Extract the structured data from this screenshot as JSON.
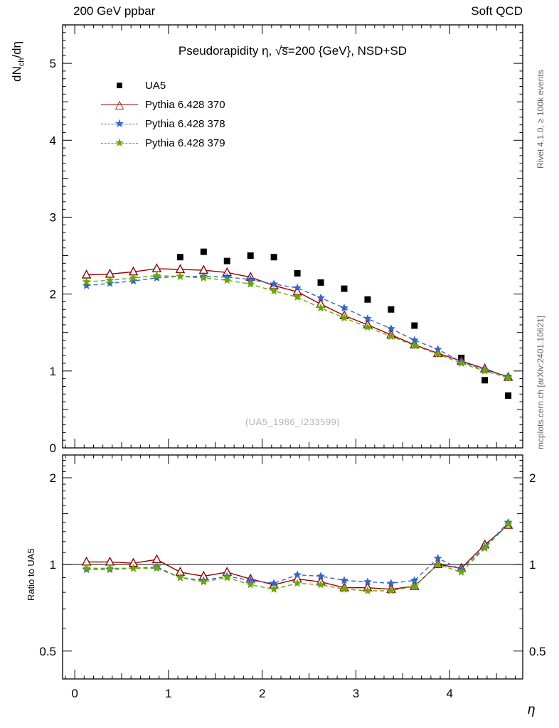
{
  "header": {
    "left": "200 GeV ppbar",
    "right": "Soft QCD"
  },
  "title": "Pseudorapidity η, √s̅=200 {GeV}, NSD+SD",
  "watermark": "(UA5_1986_I233599)",
  "side_notes": {
    "rivet": "Rivet 4.1.0, ≥ 100k events",
    "mcplots": "mcplots.cern.ch [arXiv:2401.10621]"
  },
  "axes": {
    "x_label": "η",
    "y_label_prefix": "dN",
    "y_label_sub": "ch",
    "y_label_suffix": "/dη",
    "ratio_label": "Ratio to UA5",
    "x_ticks": [
      0,
      1,
      2,
      3,
      4
    ],
    "y_ticks": [
      0,
      1,
      2,
      3,
      4,
      5
    ],
    "ratio_ticks": [
      "0.5",
      "1",
      "2"
    ]
  },
  "legend": {
    "items": [
      {
        "label": "UA5",
        "marker": "square",
        "color": "#000000",
        "line": "none"
      },
      {
        "label": "Pythia 6.428 370",
        "marker": "triangle-open",
        "color": "#990000",
        "line": "solid"
      },
      {
        "label": "Pythia 6.428 378",
        "marker": "star",
        "color": "#3366cc",
        "line": "dashed"
      },
      {
        "label": "Pythia 6.428 379",
        "marker": "star",
        "color": "#66aa00",
        "line": "dashed"
      }
    ]
  },
  "chart_data": [
    {
      "id": "main",
      "type": "line",
      "title": "Pseudorapidity η, √s=200 GeV, NSD+SD",
      "xlabel": "η",
      "ylabel": "dN_ch/dη",
      "xlim": [
        -0.13,
        4.78
      ],
      "ylim": [
        0,
        5.5
      ],
      "grid": false,
      "legend_position": "upper-left",
      "x": [
        0.125,
        0.375,
        0.625,
        0.875,
        1.125,
        1.375,
        1.625,
        1.875,
        2.125,
        2.375,
        2.625,
        2.875,
        3.125,
        3.375,
        3.625,
        3.875,
        4.125,
        4.375,
        4.625
      ],
      "series": [
        {
          "name": "UA5",
          "marker": "square",
          "color": "#000000",
          "line": "none",
          "x": [
            1.125,
            1.375,
            1.625,
            1.875,
            2.125,
            2.375,
            2.625,
            2.875,
            3.125,
            3.375,
            3.625,
            4.125,
            4.375,
            4.625
          ],
          "y": [
            2.48,
            2.55,
            2.43,
            2.5,
            2.48,
            2.27,
            2.15,
            2.07,
            1.93,
            1.8,
            1.59,
            1.17,
            0.88,
            0.68
          ]
        },
        {
          "name": "Pythia 6.428 370",
          "marker": "triangle-open",
          "color": "#990000",
          "line": "solid",
          "y": [
            2.25,
            2.26,
            2.29,
            2.33,
            2.32,
            2.31,
            2.28,
            2.22,
            2.11,
            2.03,
            1.87,
            1.72,
            1.6,
            1.47,
            1.34,
            1.23,
            1.13,
            1.03,
            0.92
          ]
        },
        {
          "name": "Pythia 6.428 378",
          "marker": "star",
          "color": "#3366cc",
          "line": "dashed",
          "y": [
            2.11,
            2.14,
            2.17,
            2.21,
            2.23,
            2.23,
            2.22,
            2.19,
            2.13,
            2.08,
            1.95,
            1.82,
            1.68,
            1.55,
            1.4,
            1.28,
            1.12,
            1.01,
            0.93
          ]
        },
        {
          "name": "Pythia 6.428 379",
          "marker": "star",
          "color": "#66aa00",
          "line": "dashed",
          "y": [
            2.16,
            2.18,
            2.21,
            2.24,
            2.23,
            2.21,
            2.18,
            2.13,
            2.04,
            1.96,
            1.82,
            1.69,
            1.57,
            1.45,
            1.33,
            1.22,
            1.1,
            1.0,
            0.91
          ]
        }
      ]
    },
    {
      "id": "ratio",
      "type": "line",
      "ylabel": "Ratio to UA5",
      "yscale": "log",
      "xlim": [
        -0.13,
        4.78
      ],
      "ylim": [
        0.4,
        2.4
      ],
      "reference_line": 1.0,
      "x": [
        0.125,
        0.375,
        0.625,
        0.875,
        1.125,
        1.375,
        1.625,
        1.875,
        2.125,
        2.375,
        2.625,
        2.875,
        3.125,
        3.375,
        3.625,
        3.875,
        4.125,
        4.375,
        4.625
      ],
      "series": [
        {
          "name": "Pythia 6.428 370",
          "marker": "triangle-open",
          "color": "#990000",
          "line": "solid",
          "y": [
            1.02,
            1.02,
            1.01,
            1.04,
            0.94,
            0.91,
            0.94,
            0.89,
            0.85,
            0.89,
            0.87,
            0.83,
            0.83,
            0.82,
            0.84,
            1.0,
            0.97,
            1.17,
            1.37
          ]
        },
        {
          "name": "Pythia 6.428 378",
          "marker": "star",
          "color": "#3366cc",
          "line": "dashed",
          "y": [
            0.96,
            0.96,
            0.97,
            0.98,
            0.9,
            0.88,
            0.91,
            0.88,
            0.86,
            0.92,
            0.91,
            0.88,
            0.87,
            0.86,
            0.88,
            1.05,
            0.96,
            1.15,
            1.4
          ]
        },
        {
          "name": "Pythia 6.428 379",
          "marker": "star",
          "color": "#66aa00",
          "line": "dashed",
          "y": [
            0.97,
            0.97,
            0.97,
            0.97,
            0.9,
            0.87,
            0.9,
            0.85,
            0.82,
            0.86,
            0.85,
            0.82,
            0.81,
            0.81,
            0.84,
            1.0,
            0.94,
            1.14,
            1.38
          ]
        }
      ]
    }
  ]
}
